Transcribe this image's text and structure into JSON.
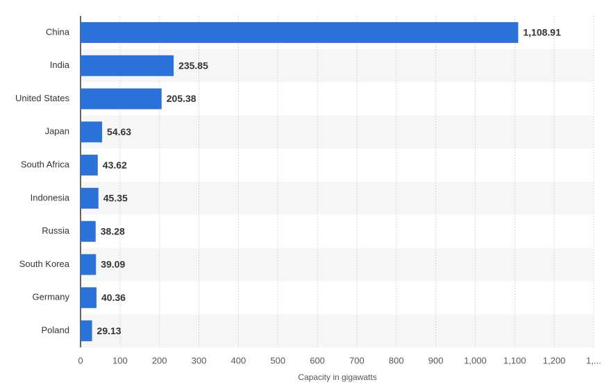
{
  "chart_data": {
    "type": "bar",
    "orientation": "horizontal",
    "x_label": "Capacity in gigawatts",
    "categories": [
      "China",
      "India",
      "United States",
      "Japan",
      "South Africa",
      "Indonesia",
      "Russia",
      "South Korea",
      "Germany",
      "Poland"
    ],
    "values": [
      1108.91,
      235.85,
      205.38,
      54.63,
      43.62,
      45.35,
      38.28,
      39.09,
      40.36,
      29.13
    ],
    "value_labels": [
      "1,108.91",
      "235.85",
      "205.38",
      "54.63",
      "43.62",
      "45.35",
      "38.28",
      "39.09",
      "40.36",
      "29.13"
    ],
    "color": "#2a72d9",
    "xlim": [
      0,
      1300
    ],
    "xticks": [
      0,
      100,
      200,
      300,
      400,
      500,
      600,
      700,
      800,
      900,
      {
        "value": 1000,
        "label": "1,000"
      },
      {
        "value": 1100,
        "label": "1,100"
      },
      {
        "value": 1200,
        "label": "1,200"
      },
      {
        "value": 1300,
        "label": "1,..."
      }
    ],
    "grid": true
  }
}
